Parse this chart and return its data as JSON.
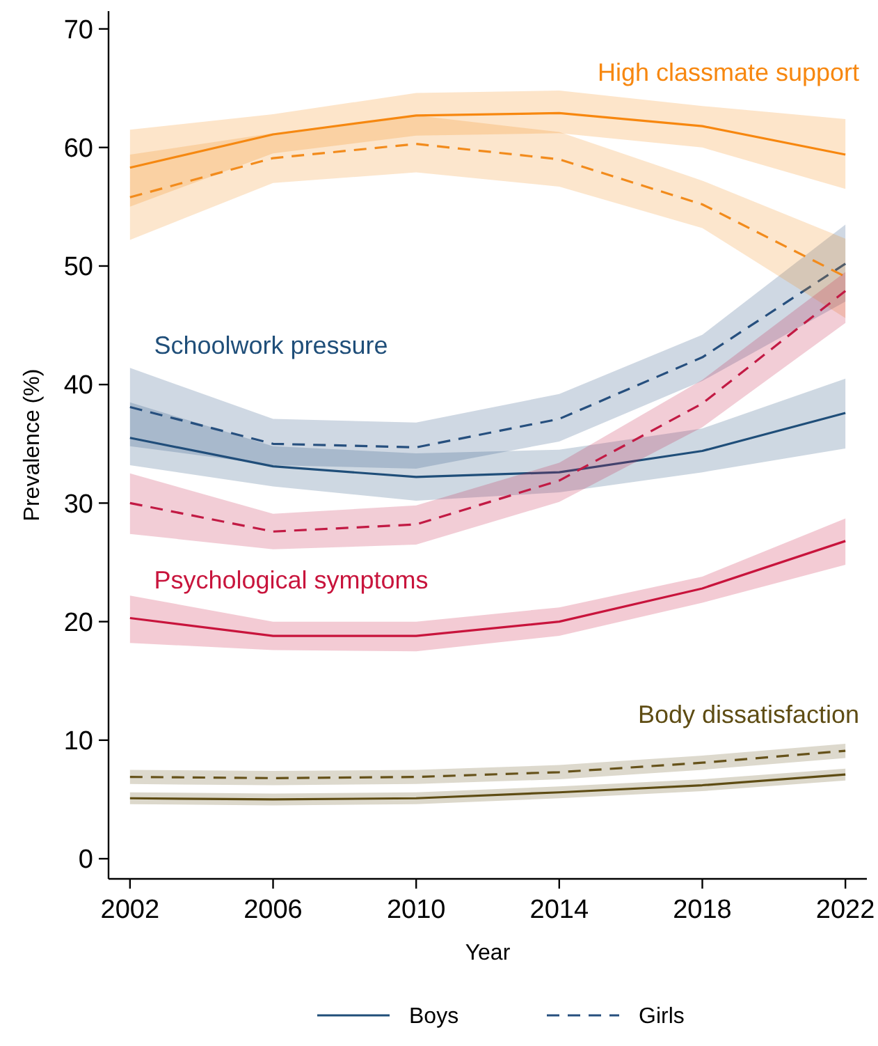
{
  "chart_data": {
    "type": "line",
    "xlabel": "Year",
    "ylabel": "Prevalence (%)",
    "x": [
      2002,
      2006,
      2010,
      2014,
      2018,
      2022
    ],
    "xlim": [
      2001.4,
      2022.6
    ],
    "xticks": [
      2002,
      2006,
      2010,
      2014,
      2018,
      2022
    ],
    "ylim": [
      -1.7,
      71.5
    ],
    "yticks": [
      0,
      10,
      20,
      30,
      40,
      50,
      60,
      70
    ],
    "grid": false,
    "legend": "bottom",
    "marker": "none",
    "series": [
      {
        "name": "Boys",
        "color": "#1f4e79",
        "line_style": "solid",
        "values": [
          35.5,
          33.1,
          32.2,
          32.6,
          34.4,
          37.6
        ],
        "lower": [
          33.2,
          31.4,
          30.2,
          30.9,
          32.6,
          34.6
        ],
        "upper": [
          38.5,
          34.8,
          34.2,
          34.5,
          36.3,
          40.5
        ]
      },
      {
        "name": "Girls",
        "color": "#264f7e",
        "line_style": "dashed",
        "values": [
          38.1,
          35.0,
          34.7,
          37.1,
          42.3,
          50.2
        ],
        "lower": [
          34.8,
          33.2,
          32.9,
          35.2,
          40.3,
          47.0
        ],
        "upper": [
          41.4,
          37.1,
          36.8,
          39.2,
          44.2,
          53.5
        ]
      },
      {
        "color": "#f7870f",
        "line_style": "solid",
        "values": [
          58.3,
          61.1,
          62.7,
          62.9,
          61.8,
          59.4
        ],
        "lower": [
          55.0,
          59.5,
          61.0,
          61.2,
          60.0,
          56.5
        ],
        "upper": [
          61.5,
          62.8,
          64.6,
          64.8,
          63.5,
          62.4
        ]
      },
      {
        "color": "#f28b1c",
        "line_style": "dashed",
        "values": [
          55.8,
          59.1,
          60.3,
          59.0,
          55.2,
          49.1
        ],
        "lower": [
          52.2,
          57.0,
          57.9,
          56.7,
          53.2,
          45.6
        ],
        "upper": [
          59.4,
          61.2,
          62.7,
          61.3,
          57.2,
          52.3
        ]
      },
      {
        "color": "#c8143c",
        "line_style": "solid",
        "values": [
          20.3,
          18.8,
          18.8,
          20.0,
          22.8,
          26.8
        ],
        "lower": [
          18.2,
          17.6,
          17.5,
          18.8,
          21.6,
          24.8
        ],
        "upper": [
          22.2,
          20.0,
          20.0,
          21.2,
          23.8,
          28.7
        ]
      },
      {
        "color": "#c21a44",
        "line_style": "dashed",
        "values": [
          30.0,
          27.6,
          28.2,
          31.9,
          38.4,
          47.9
        ],
        "lower": [
          27.4,
          26.1,
          26.5,
          30.1,
          36.4,
          45.2
        ],
        "upper": [
          32.5,
          29.1,
          29.8,
          33.4,
          40.4,
          49.5
        ]
      },
      {
        "color": "#5e4c13",
        "line_style": "solid",
        "values": [
          5.1,
          5.0,
          5.1,
          5.6,
          6.2,
          7.1
        ],
        "lower": [
          4.6,
          4.5,
          4.6,
          5.1,
          5.7,
          6.6
        ],
        "upper": [
          5.6,
          5.5,
          5.6,
          6.1,
          6.7,
          7.6
        ]
      },
      {
        "color": "#66521a",
        "line_style": "dashed",
        "values": [
          6.9,
          6.8,
          6.9,
          7.3,
          8.1,
          9.1
        ],
        "lower": [
          6.3,
          6.2,
          6.3,
          6.7,
          7.5,
          8.5
        ],
        "upper": [
          7.5,
          7.4,
          7.5,
          7.9,
          8.7,
          9.7
        ]
      }
    ],
    "annotations": [
      "Schoolwork pressure",
      "High classmate support",
      "Psychological symptoms",
      "Body dissatisfaction"
    ]
  }
}
